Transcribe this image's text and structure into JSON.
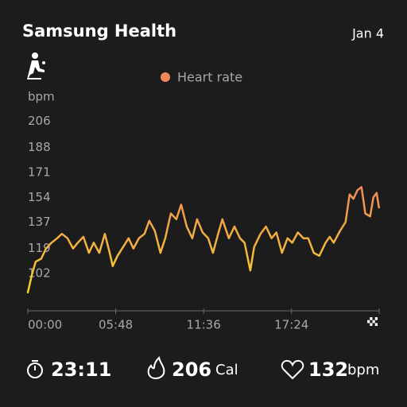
{
  "header": {
    "title": "Samsung Health",
    "date": "Jan 4"
  },
  "chart_data": {
    "type": "line",
    "y_label": "bpm",
    "x": [
      0,
      16,
      31,
      53,
      72,
      94,
      116,
      135,
      157,
      179,
      198,
      220,
      242,
      261,
      283,
      305,
      324,
      336,
      355,
      377,
      399,
      418,
      440,
      462,
      481,
      503,
      525,
      544,
      566,
      588,
      607,
      629,
      651,
      670,
      692,
      714,
      733,
      755,
      770,
      796,
      818,
      840,
      858,
      881,
      896,
      921,
      943,
      965,
      984,
      1006,
      1028,
      1047,
      1069,
      1091,
      1110,
      1132,
      1154,
      1179,
      1195,
      1211,
      1236,
      1258,
      1274,
      1289,
      1305,
      1321,
      1336,
      1355,
      1368,
      1381,
      1390
    ],
    "series": [
      {
        "name": "Heart rate",
        "color": "#f0885c",
        "color_low": "#f5d52a",
        "values": [
          89,
          101,
          110,
          112,
          119,
          123,
          126,
          129,
          126,
          119,
          123,
          127,
          116,
          123,
          116,
          129,
          116,
          107,
          114,
          120,
          126,
          119,
          126,
          129,
          138,
          131,
          116,
          126,
          143,
          139,
          149,
          134,
          126,
          139,
          130,
          126,
          116,
          130,
          139,
          126,
          134,
          126,
          123,
          104,
          120,
          129,
          134,
          126,
          130,
          116,
          126,
          123,
          130,
          126,
          126,
          116,
          114,
          123,
          127,
          123,
          131,
          137,
          156,
          153,
          159,
          161,
          143,
          141,
          154,
          157,
          147
        ]
      }
    ],
    "xlim": [
      0,
      1391
    ],
    "xticks": [
      {
        "value": 0,
        "label": "00:00"
      },
      {
        "value": 348,
        "label": "05:48"
      },
      {
        "value": 696,
        "label": "11:36"
      },
      {
        "value": 1044,
        "label": "17:24"
      }
    ],
    "ylim": [
      78,
      212
    ],
    "yticks": [
      102,
      119,
      137,
      154,
      171,
      188,
      206
    ],
    "legend": "top"
  },
  "stats": {
    "duration": "23:11",
    "calories": "206",
    "calories_unit": "Cal",
    "heart_rate": "132",
    "heart_rate_unit": "bpm"
  }
}
